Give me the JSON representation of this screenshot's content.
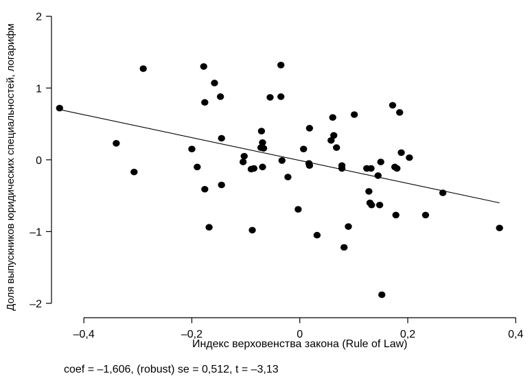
{
  "chart_data": {
    "type": "scatter",
    "title": "",
    "xlabel": "Индекс верховенства закона (Rule of Law)",
    "ylabel": "Доля выпускников юридических специальностей, логарифм",
    "xlim": [
      -0.46,
      0.42
    ],
    "ylim": [
      -2.2,
      2.15
    ],
    "xticks": [
      -0.4,
      -0.2,
      0,
      0.2,
      0.4
    ],
    "xtick_labels": [
      "–0,4",
      "–0,2",
      "0",
      "0,2",
      "0,4"
    ],
    "yticks": [
      -2,
      -1,
      0,
      1,
      2
    ],
    "ytick_labels": [
      "–2",
      "–1",
      "0",
      "1",
      "2"
    ],
    "grid": false,
    "fit_line": {
      "x": [
        -0.445,
        0.37
      ],
      "y": [
        0.7,
        -0.6
      ]
    },
    "points": [
      [
        -0.445,
        0.72
      ],
      [
        -0.34,
        0.23
      ],
      [
        -0.307,
        -0.17
      ],
      [
        -0.29,
        1.27
      ],
      [
        -0.2,
        0.15
      ],
      [
        -0.19,
        -0.1
      ],
      [
        -0.178,
        1.3
      ],
      [
        -0.176,
        0.8
      ],
      [
        -0.176,
        -0.41
      ],
      [
        -0.168,
        -0.94
      ],
      [
        -0.158,
        1.07
      ],
      [
        -0.147,
        0.88
      ],
      [
        -0.145,
        0.3
      ],
      [
        -0.145,
        -0.35
      ],
      [
        -0.105,
        -0.03
      ],
      [
        -0.103,
        0.05
      ],
      [
        -0.09,
        -0.13
      ],
      [
        -0.088,
        -0.98
      ],
      [
        -0.085,
        -0.12
      ],
      [
        -0.072,
        0.17
      ],
      [
        -0.071,
        0.4
      ],
      [
        -0.069,
        0.24
      ],
      [
        -0.069,
        -0.1
      ],
      [
        -0.067,
        0.16
      ],
      [
        -0.055,
        0.87
      ],
      [
        -0.035,
        1.32
      ],
      [
        -0.035,
        0.88
      ],
      [
        -0.033,
        -0.01
      ],
      [
        -0.022,
        -0.24
      ],
      [
        -0.003,
        -0.69
      ],
      [
        0.007,
        0.15
      ],
      [
        0.017,
        -0.05
      ],
      [
        0.018,
        0.44
      ],
      [
        0.018,
        -0.08
      ],
      [
        0.032,
        -1.05
      ],
      [
        0.058,
        0.27
      ],
      [
        0.061,
        0.59
      ],
      [
        0.063,
        0.34
      ],
      [
        0.068,
        0.17
      ],
      [
        0.078,
        -0.08
      ],
      [
        0.078,
        -0.12
      ],
      [
        0.082,
        -1.22
      ],
      [
        0.09,
        -0.93
      ],
      [
        0.101,
        0.63
      ],
      [
        0.124,
        -0.12
      ],
      [
        0.128,
        -0.44
      ],
      [
        0.13,
        -0.6
      ],
      [
        0.132,
        -0.12
      ],
      [
        0.133,
        -0.63
      ],
      [
        0.145,
        -0.22
      ],
      [
        0.148,
        -0.63
      ],
      [
        0.15,
        -0.03
      ],
      [
        0.152,
        -1.88
      ],
      [
        0.172,
        0.76
      ],
      [
        0.176,
        -0.1
      ],
      [
        0.178,
        -0.77
      ],
      [
        0.18,
        -0.12
      ],
      [
        0.185,
        0.66
      ],
      [
        0.188,
        0.1
      ],
      [
        0.203,
        0.03
      ],
      [
        0.233,
        -0.77
      ],
      [
        0.265,
        -0.46
      ],
      [
        0.37,
        -0.95
      ]
    ],
    "annotation": "coef = –1,606, (robust) se = 0,512, t = –3,13"
  }
}
